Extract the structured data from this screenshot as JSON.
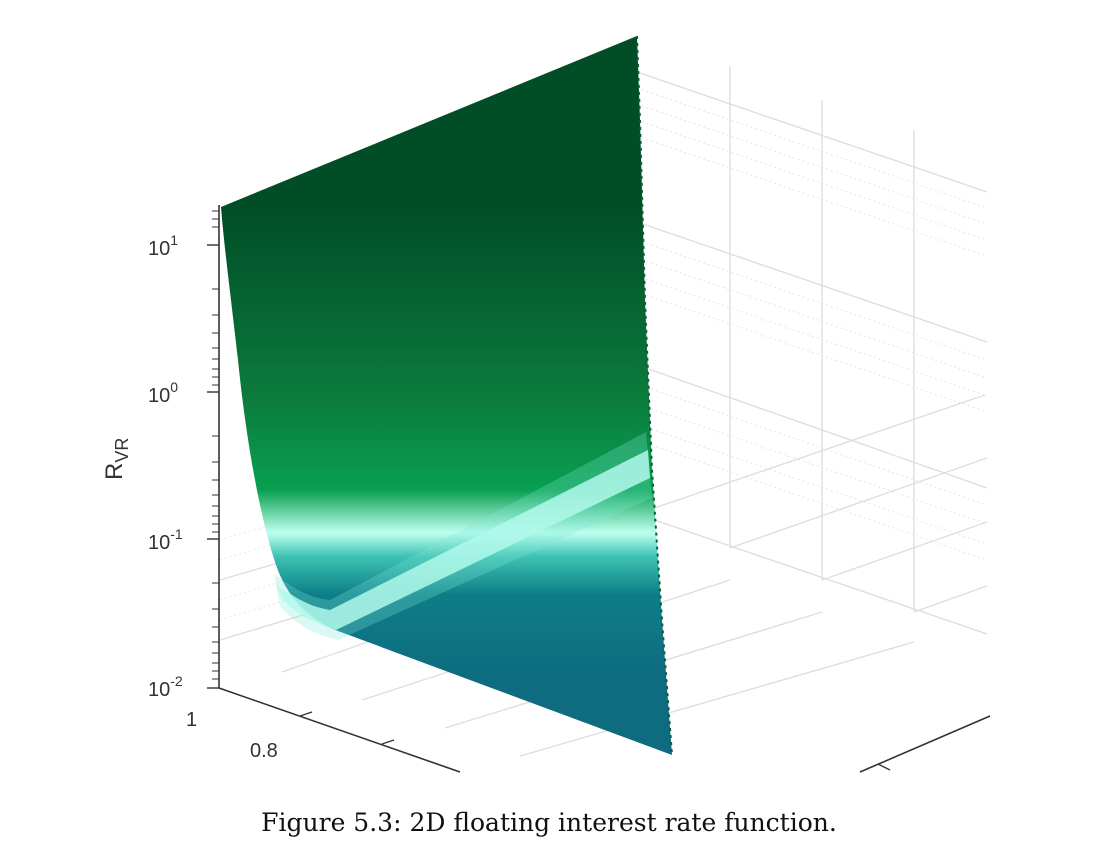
{
  "caption": "Figure 5.3: 2D floating interest rate function.",
  "chart_data": {
    "type": "surface",
    "zlabel": "R",
    "zlabel_sub": "VR",
    "zscale": "log",
    "zlim": [
      0.01,
      20
    ],
    "z_ticks": [
      {
        "base": "10",
        "exp": "1",
        "value": 10
      },
      {
        "base": "10",
        "exp": "0",
        "value": 1
      },
      {
        "base": "10",
        "exp": "-1",
        "value": 0.1
      },
      {
        "base": "10",
        "exp": "-2",
        "value": 0.01
      }
    ],
    "x_ticks": [
      "1",
      "0.8"
    ],
    "grid": true,
    "colors": {
      "surface_top": "#004d26",
      "surface_mid": "#0b8a44",
      "surface_band": "#bdfff2",
      "surface_low": "#0e6f86",
      "axis": "#333333",
      "grid": "#dedede"
    }
  }
}
